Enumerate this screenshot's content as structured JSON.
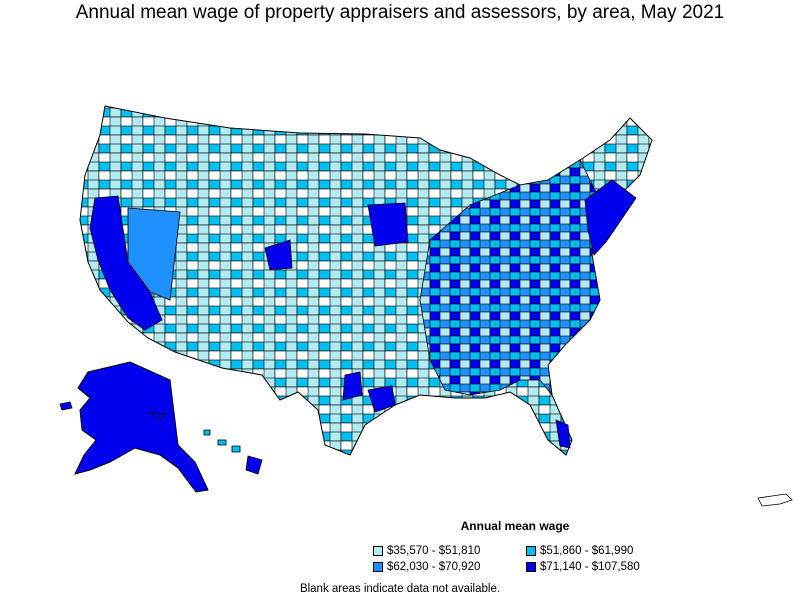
{
  "title": "Annual mean wage of property appraisers and assessors, by area, May 2021",
  "legend": {
    "title": "Annual mean wage",
    "items": [
      {
        "label": "$35,570 - $51,810",
        "color": "#b2ebf2"
      },
      {
        "label": "$51,860 - $61,990",
        "color": "#00bfef"
      },
      {
        "label": "$62,030 - $70,920",
        "color": "#1e90ff"
      },
      {
        "label": "$71,140 - $107,580",
        "color": "#0000ee"
      }
    ]
  },
  "note": "Blank areas indicate data not available.",
  "colors": {
    "border": "#000000",
    "no_data": "#ffffff"
  }
}
